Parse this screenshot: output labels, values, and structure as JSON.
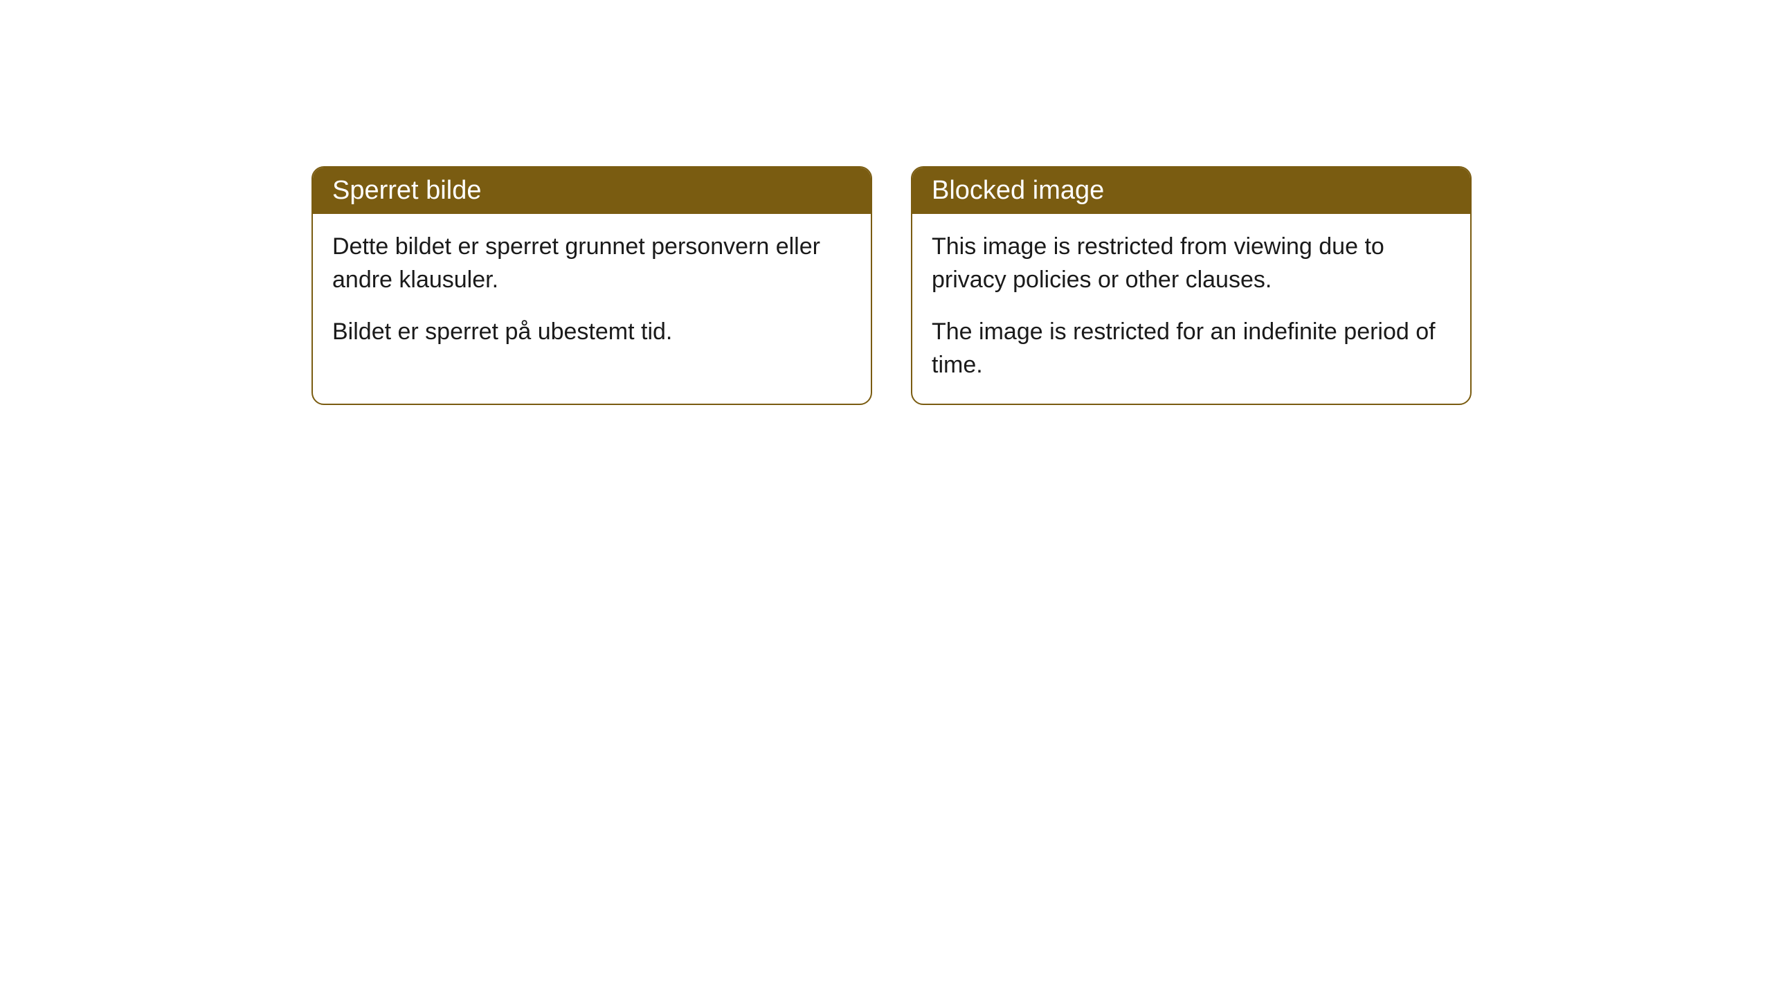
{
  "cards": [
    {
      "title": "Sperret bilde",
      "paragraph1": "Dette bildet er sperret grunnet personvern eller andre klausuler.",
      "paragraph2": "Bildet er sperret på ubestemt tid."
    },
    {
      "title": "Blocked image",
      "paragraph1": "This image is restricted from viewing due to privacy policies or other clauses.",
      "paragraph2": "The image is restricted for an indefinite period of time."
    }
  ],
  "styling": {
    "header_background": "#7a5c11",
    "header_text_color": "#ffffff",
    "card_border_color": "#7a5c11",
    "card_background": "#ffffff",
    "body_text_color": "#1a1a1a",
    "page_background": "#ffffff",
    "border_radius": 18,
    "header_fontsize": 38,
    "body_fontsize": 34
  }
}
